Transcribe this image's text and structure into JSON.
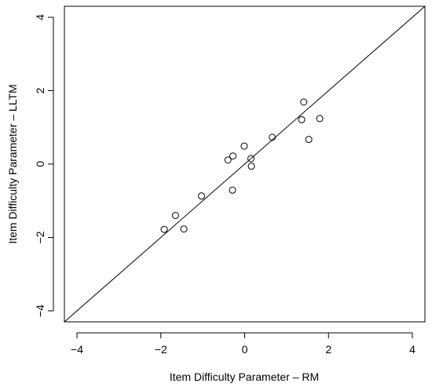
{
  "chart_data": {
    "type": "scatter",
    "title": "",
    "xlabel": "Item Difficulty Parameter – RM",
    "ylabel": "Item Difficulty Parameter – LLTM",
    "xlim": [
      -4.3,
      4.3
    ],
    "ylim": [
      -4.3,
      4.3
    ],
    "xticks": [
      -4,
      -2,
      0,
      2,
      4
    ],
    "yticks": [
      -4,
      -2,
      0,
      2,
      4
    ],
    "xtick_labels": [
      "−4",
      "−2",
      "0",
      "2",
      "4"
    ],
    "ytick_labels": [
      "−4",
      "−2",
      "0",
      "2",
      "4"
    ],
    "grid": false,
    "legend": "none",
    "reference_line": {
      "slope": 1,
      "intercept": 0
    },
    "marker": "open-circle",
    "points": [
      {
        "x": -1.92,
        "y": -1.78
      },
      {
        "x": -1.65,
        "y": -1.4
      },
      {
        "x": -1.45,
        "y": -1.77
      },
      {
        "x": -1.03,
        "y": -0.87
      },
      {
        "x": -0.4,
        "y": 0.11
      },
      {
        "x": -0.28,
        "y": 0.22
      },
      {
        "x": -0.29,
        "y": -0.71
      },
      {
        "x": -0.01,
        "y": 0.49
      },
      {
        "x": 0.15,
        "y": 0.15
      },
      {
        "x": 0.16,
        "y": -0.06
      },
      {
        "x": 0.66,
        "y": 0.73
      },
      {
        "x": 1.36,
        "y": 1.21
      },
      {
        "x": 1.41,
        "y": 1.69
      },
      {
        "x": 1.53,
        "y": 0.67
      },
      {
        "x": 1.79,
        "y": 1.24
      }
    ]
  }
}
